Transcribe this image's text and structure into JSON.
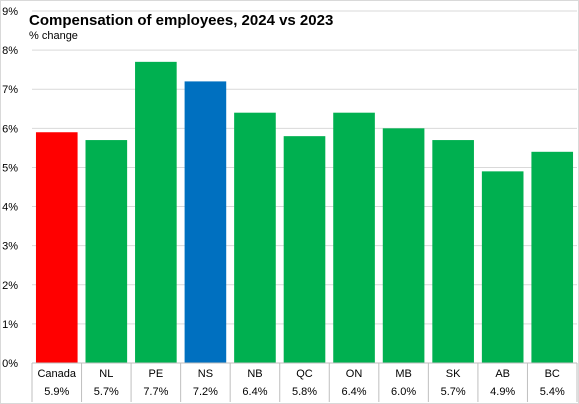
{
  "chart_data": {
    "type": "bar",
    "title": "Compensation of employees, 2024 vs 2023",
    "subtitle": "% change",
    "xlabel": "",
    "ylabel": "",
    "ylim": [
      0,
      9
    ],
    "yticks": [
      0,
      1,
      2,
      3,
      4,
      5,
      6,
      7,
      8,
      9
    ],
    "ytick_labels": [
      "0%",
      "1%",
      "2%",
      "3%",
      "4%",
      "5%",
      "6%",
      "7%",
      "8%",
      "9%"
    ],
    "categories": [
      "Canada",
      "NL",
      "PE",
      "NS",
      "NB",
      "QC",
      "ON",
      "MB",
      "SK",
      "AB",
      "BC"
    ],
    "values": [
      5.9,
      5.7,
      7.7,
      7.2,
      6.4,
      5.8,
      6.4,
      6.0,
      5.7,
      4.9,
      5.4
    ],
    "value_labels": [
      "5.9%",
      "5.7%",
      "7.7%",
      "7.2%",
      "6.4%",
      "5.8%",
      "6.4%",
      "6.0%",
      "5.7%",
      "4.9%",
      "5.4%"
    ],
    "colors": [
      "#ff0000",
      "#00b050",
      "#00b050",
      "#0070c0",
      "#00b050",
      "#00b050",
      "#00b050",
      "#00b050",
      "#00b050",
      "#00b050",
      "#00b050"
    ],
    "grid": "horizontal",
    "legend": "none"
  }
}
